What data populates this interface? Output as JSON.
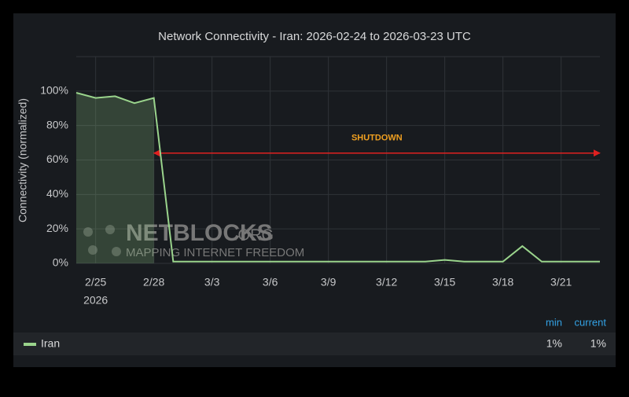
{
  "chart_data": {
    "type": "line",
    "title": "Network Connectivity - Iran: 2026-02-24 to 2026-03-23 UTC",
    "y_label": "Connectivity (normalized)",
    "x": [
      "2026-02-24",
      "2026-02-25",
      "2026-02-26",
      "2026-02-27",
      "2026-02-28",
      "2026-03-01",
      "2026-03-02",
      "2026-03-03",
      "2026-03-04",
      "2026-03-05",
      "2026-03-06",
      "2026-03-07",
      "2026-03-08",
      "2026-03-09",
      "2026-03-10",
      "2026-03-11",
      "2026-03-12",
      "2026-03-13",
      "2026-03-14",
      "2026-03-15",
      "2026-03-16",
      "2026-03-17",
      "2026-03-18",
      "2026-03-19",
      "2026-03-20",
      "2026-03-21",
      "2026-03-22",
      "2026-03-23"
    ],
    "series": [
      {
        "name": "Iran",
        "color": "#9ad48c",
        "values": [
          99,
          96,
          97,
          93,
          96,
          1,
          1,
          1,
          1,
          1,
          1,
          1,
          1,
          1,
          1,
          1,
          1,
          1,
          1,
          2,
          1,
          1,
          1,
          10,
          1,
          1,
          1,
          1
        ],
        "fill_until": "2026-02-28"
      }
    ],
    "xlim": [
      "2026-02-24",
      "2026-03-23"
    ],
    "xticks": [
      {
        "value": "2026-02-25",
        "label": "2/25"
      },
      {
        "value": "2026-02-28",
        "label": "2/28"
      },
      {
        "value": "2026-03-03",
        "label": "3/3"
      },
      {
        "value": "2026-03-06",
        "label": "3/6"
      },
      {
        "value": "2026-03-09",
        "label": "3/9"
      },
      {
        "value": "2026-03-12",
        "label": "3/12"
      },
      {
        "value": "2026-03-15",
        "label": "3/15"
      },
      {
        "value": "2026-03-18",
        "label": "3/18"
      },
      {
        "value": "2026-03-21",
        "label": "3/21"
      }
    ],
    "x_year_label": "2026",
    "ylim": [
      0,
      120
    ],
    "yticks": [
      {
        "value": 0,
        "label": "0%"
      },
      {
        "value": 20,
        "label": "20%"
      },
      {
        "value": 40,
        "label": "40%"
      },
      {
        "value": 60,
        "label": "60%"
      },
      {
        "value": 80,
        "label": "80%"
      },
      {
        "value": 100,
        "label": "100%"
      }
    ],
    "grid": true,
    "annotation": {
      "text": "SHUTDOWN",
      "x_start": "2026-02-28",
      "x_end": "2026-03-23",
      "y": 64,
      "color": "#e02020"
    },
    "watermark": {
      "title": "NETBLOCKS",
      "suffix": ".ORG",
      "subtitle": "MAPPING INTERNET FREEDOM"
    },
    "legend": {
      "headers": [
        "min",
        "current"
      ],
      "values": [
        1,
        1
      ],
      "value_labels": [
        "1%",
        "1%"
      ]
    }
  }
}
